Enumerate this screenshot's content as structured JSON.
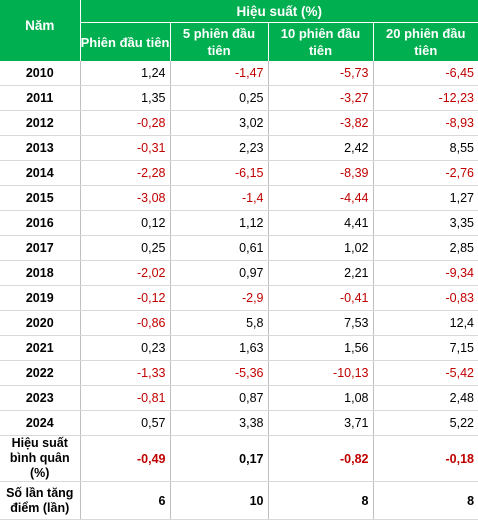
{
  "header": {
    "year_label": "Năm",
    "group_label": "Hiệu suất (%)",
    "columns": [
      "Phiên đầu tiên",
      "5 phiên đầu tiên",
      "10 phiên đầu tiên",
      "20 phiên đầu tiên"
    ]
  },
  "rows": [
    {
      "year": "2010",
      "v": [
        "1,24",
        "-1,47",
        "-5,73",
        "-6,45"
      ]
    },
    {
      "year": "2011",
      "v": [
        "1,35",
        "0,25",
        "-3,27",
        "-12,23"
      ]
    },
    {
      "year": "2012",
      "v": [
        "-0,28",
        "3,02",
        "-3,82",
        "-8,93"
      ]
    },
    {
      "year": "2013",
      "v": [
        "-0,31",
        "2,23",
        "2,42",
        "8,55"
      ]
    },
    {
      "year": "2014",
      "v": [
        "-2,28",
        "-6,15",
        "-8,39",
        "-2,76"
      ]
    },
    {
      "year": "2015",
      "v": [
        "-3,08",
        "-1,4",
        "-4,44",
        "1,27"
      ]
    },
    {
      "year": "2016",
      "v": [
        "0,12",
        "1,12",
        "4,41",
        "3,35"
      ]
    },
    {
      "year": "2017",
      "v": [
        "0,25",
        "0,61",
        "1,02",
        "2,85"
      ]
    },
    {
      "year": "2018",
      "v": [
        "-2,02",
        "0,97",
        "2,21",
        "-9,34"
      ]
    },
    {
      "year": "2019",
      "v": [
        "-0,12",
        "-2,9",
        "-0,41",
        "-0,83"
      ]
    },
    {
      "year": "2020",
      "v": [
        "-0,86",
        "5,8",
        "7,53",
        "12,4"
      ]
    },
    {
      "year": "2021",
      "v": [
        "0,23",
        "1,63",
        "1,56",
        "7,15"
      ]
    },
    {
      "year": "2022",
      "v": [
        "-1,33",
        "-5,36",
        "-10,13",
        "-5,42"
      ]
    },
    {
      "year": "2023",
      "v": [
        "-0,81",
        "0,87",
        "1,08",
        "2,48"
      ]
    },
    {
      "year": "2024",
      "v": [
        "0,57",
        "3,38",
        "3,71",
        "5,22"
      ]
    }
  ],
  "average": {
    "label": "Hiệu suất bình quân (%)",
    "v": [
      "-0,49",
      "0,17",
      "-0,82",
      "-0,18"
    ]
  },
  "count_up": {
    "label": "Số lần tăng điểm (lần)",
    "v": [
      "6",
      "10",
      "8",
      "8"
    ]
  },
  "colors": {
    "header_green": "#00b050",
    "negative": "#c00000",
    "positive": "#000000"
  }
}
